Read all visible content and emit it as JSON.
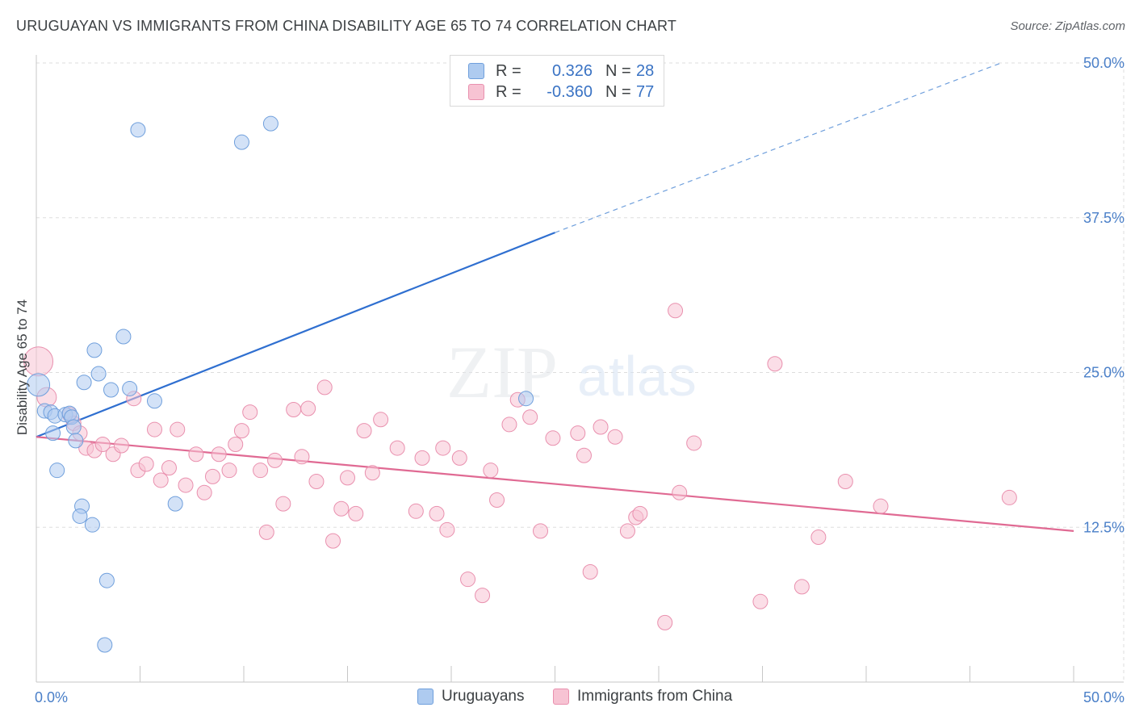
{
  "title": "URUGUAYAN VS IMMIGRANTS FROM CHINA DISABILITY AGE 65 TO 74 CORRELATION CHART",
  "source": "Source: ZipAtlas.com",
  "watermark": {
    "zip": "ZIP",
    "atlas": "atlas"
  },
  "legend": {
    "rows": [
      {
        "r_label": "R =",
        "r_value": "0.326",
        "n_label": "N =",
        "n_value": "28"
      },
      {
        "r_label": "R =",
        "r_value": "-0.360",
        "n_label": "N =",
        "n_value": "77"
      }
    ]
  },
  "bottom_legend": {
    "series1": "Uruguayans",
    "series2": "Immigrants from China"
  },
  "colors": {
    "blue_fill": "#aecbf0",
    "blue_stroke": "#6f9fdc",
    "blue_line": "#2f6fd0",
    "pink_fill": "#f7c3d3",
    "pink_stroke": "#e990ae",
    "pink_line": "#e06a93",
    "axis_text": "#4a7fc8",
    "grid": "#dddddd"
  },
  "chart_data": {
    "type": "scatter",
    "title": "URUGUAYAN VS IMMIGRANTS FROM CHINA DISABILITY AGE 65 TO 74 CORRELATION CHART",
    "xlabel": "",
    "ylabel": "Disability Age 65 to 74",
    "xlim": [
      0,
      50
    ],
    "ylim": [
      0,
      50
    ],
    "x_tick_labels": [
      "0.0%",
      "50.0%"
    ],
    "y_ticks": [
      12.5,
      25,
      37.5,
      50
    ],
    "y_tick_labels": [
      "12.5%",
      "25.0%",
      "37.5%",
      "50.0%"
    ],
    "grid": true,
    "series": [
      {
        "name": "Uruguayans",
        "R": 0.326,
        "N": 28,
        "points": [
          [
            0.1,
            24.0,
            14
          ],
          [
            0.4,
            21.9,
            9
          ],
          [
            0.7,
            21.8,
            9
          ],
          [
            0.8,
            20.1,
            9
          ],
          [
            0.9,
            21.5,
            9
          ],
          [
            1.0,
            17.1,
            9
          ],
          [
            1.4,
            21.6,
            9
          ],
          [
            1.6,
            21.7,
            9
          ],
          [
            1.7,
            21.4,
            9
          ],
          [
            1.8,
            20.6,
            9
          ],
          [
            1.9,
            19.5,
            9
          ],
          [
            2.2,
            14.2,
            9
          ],
          [
            2.1,
            13.4,
            9
          ],
          [
            2.7,
            12.7,
            9
          ],
          [
            2.3,
            24.2,
            9
          ],
          [
            2.8,
            26.8,
            9
          ],
          [
            3.0,
            24.9,
            9
          ],
          [
            3.4,
            8.2,
            9
          ],
          [
            3.3,
            3.0,
            9
          ],
          [
            3.6,
            23.6,
            9
          ],
          [
            4.2,
            27.9,
            9
          ],
          [
            4.5,
            23.7,
            9
          ],
          [
            4.9,
            44.6,
            9
          ],
          [
            5.7,
            22.7,
            9
          ],
          [
            6.7,
            14.4,
            9
          ],
          [
            9.9,
            43.6,
            9
          ],
          [
            11.3,
            45.1,
            9
          ],
          [
            23.6,
            22.9,
            9
          ]
        ],
        "trend": {
          "x0": 0,
          "y0": 19.8,
          "x1": 25.0,
          "y1": 36.3,
          "dashed_to_x": 46.5,
          "dashed_to_y": 50.0
        }
      },
      {
        "name": "Immigrants from China",
        "R": -0.36,
        "N": 77,
        "points": [
          [
            0.1,
            25.9,
            18
          ],
          [
            0.5,
            23.0,
            12
          ],
          [
            1.6,
            21.6,
            9
          ],
          [
            1.8,
            20.9,
            9
          ],
          [
            2.1,
            20.1,
            9
          ],
          [
            2.4,
            18.9,
            9
          ],
          [
            2.8,
            18.7,
            9
          ],
          [
            3.2,
            19.2,
            9
          ],
          [
            3.7,
            18.4,
            9
          ],
          [
            4.1,
            19.1,
            9
          ],
          [
            4.7,
            22.9,
            9
          ],
          [
            4.9,
            17.1,
            9
          ],
          [
            5.3,
            17.6,
            9
          ],
          [
            5.7,
            20.4,
            9
          ],
          [
            6.0,
            16.3,
            9
          ],
          [
            6.4,
            17.3,
            9
          ],
          [
            6.8,
            20.4,
            9
          ],
          [
            7.2,
            15.9,
            9
          ],
          [
            7.7,
            18.4,
            9
          ],
          [
            8.1,
            15.3,
            9
          ],
          [
            8.5,
            16.6,
            9
          ],
          [
            8.8,
            18.4,
            9
          ],
          [
            9.3,
            17.1,
            9
          ],
          [
            9.6,
            19.2,
            9
          ],
          [
            9.9,
            20.3,
            9
          ],
          [
            10.3,
            21.8,
            9
          ],
          [
            10.8,
            17.1,
            9
          ],
          [
            11.1,
            12.1,
            9
          ],
          [
            11.5,
            17.9,
            9
          ],
          [
            11.9,
            14.4,
            9
          ],
          [
            12.4,
            22.0,
            9
          ],
          [
            12.8,
            18.2,
            9
          ],
          [
            13.1,
            22.1,
            9
          ],
          [
            13.5,
            16.2,
            9
          ],
          [
            13.9,
            23.8,
            9
          ],
          [
            14.3,
            11.4,
            9
          ],
          [
            14.7,
            14.0,
            9
          ],
          [
            15.0,
            16.5,
            9
          ],
          [
            15.4,
            13.6,
            9
          ],
          [
            15.8,
            20.3,
            9
          ],
          [
            16.2,
            16.9,
            9
          ],
          [
            16.6,
            21.2,
            9
          ],
          [
            17.4,
            18.9,
            9
          ],
          [
            18.3,
            13.8,
            9
          ],
          [
            18.6,
            18.1,
            9
          ],
          [
            19.3,
            13.6,
            9
          ],
          [
            19.6,
            18.9,
            9
          ],
          [
            19.8,
            12.3,
            9
          ],
          [
            20.4,
            18.1,
            9
          ],
          [
            20.8,
            8.3,
            9
          ],
          [
            21.5,
            7.0,
            9
          ],
          [
            21.9,
            17.1,
            9
          ],
          [
            22.2,
            14.7,
            9
          ],
          [
            22.8,
            20.8,
            9
          ],
          [
            23.2,
            22.8,
            9
          ],
          [
            23.8,
            21.4,
            9
          ],
          [
            24.3,
            12.2,
            9
          ],
          [
            24.9,
            19.7,
            9
          ],
          [
            26.1,
            20.1,
            9
          ],
          [
            26.4,
            18.3,
            9
          ],
          [
            26.7,
            8.9,
            9
          ],
          [
            27.2,
            20.6,
            9
          ],
          [
            27.9,
            19.8,
            9
          ],
          [
            28.5,
            12.2,
            9
          ],
          [
            28.9,
            13.3,
            9
          ],
          [
            29.1,
            13.6,
            9
          ],
          [
            30.3,
            4.8,
            9
          ],
          [
            30.8,
            30.0,
            9
          ],
          [
            31.0,
            15.3,
            9
          ],
          [
            31.7,
            19.3,
            9
          ],
          [
            34.9,
            6.5,
            9
          ],
          [
            35.6,
            25.7,
            9
          ],
          [
            36.9,
            7.7,
            9
          ],
          [
            37.7,
            11.7,
            9
          ],
          [
            39.0,
            16.2,
            9
          ],
          [
            40.7,
            14.2,
            9
          ],
          [
            46.9,
            14.9,
            9
          ]
        ],
        "trend": {
          "x0": 0,
          "y0": 19.8,
          "x1": 50.0,
          "y1": 12.2
        }
      }
    ]
  }
}
